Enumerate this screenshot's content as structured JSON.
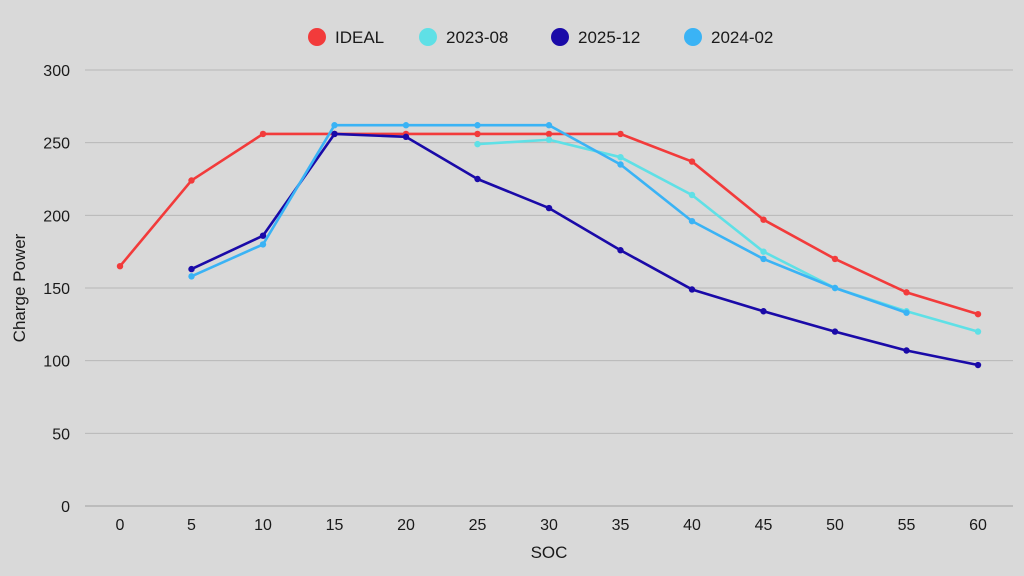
{
  "chart_data": {
    "type": "line",
    "title": "",
    "xlabel": "SOC",
    "ylabel": "Charge Power",
    "x": [
      0,
      5,
      10,
      15,
      20,
      25,
      30,
      35,
      40,
      45,
      50,
      55,
      60
    ],
    "x_ticks": [
      "0",
      "5",
      "10",
      "15",
      "20",
      "25",
      "30",
      "35",
      "40",
      "45",
      "50",
      "55",
      "60"
    ],
    "ylim": [
      0,
      300
    ],
    "y_ticks": [
      "0",
      "50",
      "100",
      "150",
      "200",
      "250",
      "300"
    ],
    "grid": true,
    "legend_position": "top-center",
    "series": [
      {
        "name": "IDEAL",
        "color": "#f23b3b",
        "points": [
          [
            0,
            165
          ],
          [
            5,
            224
          ],
          [
            10,
            256
          ],
          [
            15,
            256
          ],
          [
            20,
            256
          ],
          [
            25,
            256
          ],
          [
            30,
            256
          ],
          [
            35,
            256
          ],
          [
            40,
            237
          ],
          [
            45,
            197
          ],
          [
            50,
            170
          ],
          [
            55,
            147
          ],
          [
            60,
            132
          ]
        ]
      },
      {
        "name": "2023-08",
        "color": "#5fe0e6",
        "points": [
          [
            25,
            249
          ],
          [
            30,
            252
          ],
          [
            35,
            240
          ],
          [
            40,
            214
          ],
          [
            45,
            175
          ],
          [
            50,
            150
          ],
          [
            55,
            134
          ],
          [
            60,
            120
          ]
        ]
      },
      {
        "name": "2025-12",
        "color": "#1a0aa8",
        "points": [
          [
            5,
            163
          ],
          [
            10,
            186
          ],
          [
            15,
            256
          ],
          [
            20,
            254
          ],
          [
            25,
            225
          ],
          [
            30,
            205
          ],
          [
            35,
            176
          ],
          [
            40,
            149
          ],
          [
            45,
            134
          ],
          [
            50,
            120
          ],
          [
            55,
            107
          ],
          [
            60,
            97
          ]
        ]
      },
      {
        "name": "2024-02",
        "color": "#3ab3f5",
        "points": [
          [
            5,
            158
          ],
          [
            10,
            180
          ],
          [
            15,
            262
          ],
          [
            20,
            262
          ],
          [
            25,
            262
          ],
          [
            30,
            262
          ],
          [
            35,
            235
          ],
          [
            40,
            196
          ],
          [
            45,
            170
          ],
          [
            50,
            150
          ],
          [
            55,
            133
          ]
        ]
      }
    ]
  }
}
